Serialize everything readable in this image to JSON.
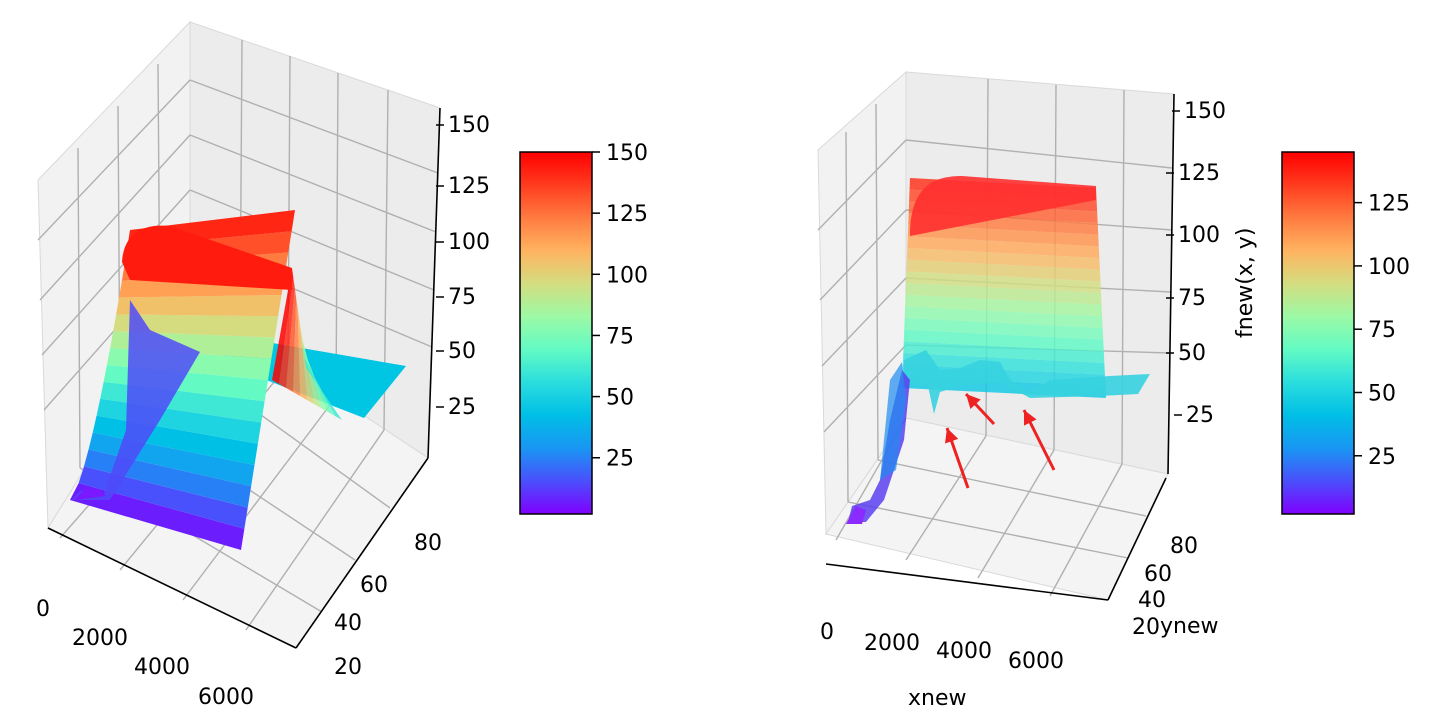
{
  "chart_data": [
    {
      "type": "surface3d",
      "title": "",
      "xlabel": "",
      "ylabel": "",
      "zlabel": "",
      "x_ticks": [
        "0",
        "2000",
        "4000",
        "6000"
      ],
      "y_ticks": [
        "20",
        "40",
        "60",
        "80"
      ],
      "z_ticks": [
        "25",
        "50",
        "75",
        "100",
        "125",
        "150"
      ],
      "colormap": "rainbow",
      "colorbar_ticks": [
        "25",
        "50",
        "75",
        "100",
        "125",
        "150"
      ],
      "colorbar_range": [
        2,
        150
      ],
      "surface_profile": {
        "description_values": "peak plateau near 150 at low x, falling to about 50 for mid-to-high x",
        "peak_value": 150,
        "plateau_value": 50
      }
    },
    {
      "type": "surface3d",
      "title": "",
      "xlabel": "xnew",
      "ylabel": "ynew",
      "zlabel": "fnew(x, y)",
      "x_ticks": [
        "0",
        "2000",
        "4000",
        "6000"
      ],
      "y_ticks": [
        "20",
        "40",
        "60",
        "80"
      ],
      "z_ticks": [
        "25",
        "50",
        "75",
        "100",
        "125",
        "150"
      ],
      "colormap": "rainbow",
      "colorbar_ticks": [
        "25",
        "50",
        "75",
        "100",
        "125"
      ],
      "colorbar_range": [
        2,
        145
      ],
      "annotations": [
        {
          "type": "arrow",
          "color": "#ee2222",
          "target": "dip"
        },
        {
          "type": "arrow",
          "color": "#ee2222",
          "target": "dip"
        },
        {
          "type": "arrow",
          "color": "#ee2222",
          "target": "dip"
        }
      ],
      "surface_profile": {
        "peak_value": 145,
        "plateau_value": 45
      }
    }
  ],
  "colors": {
    "rainbow": [
      "#8000ff",
      "#4a4ffc",
      "#1996f3",
      "#00bfe6",
      "#2adddd",
      "#62fbc4",
      "#9cf9a5",
      "#d4dd80",
      "#ffb360",
      "#ff7b40",
      "#ff3b1e",
      "#ff0000"
    ],
    "arrow": "#ee2222"
  }
}
